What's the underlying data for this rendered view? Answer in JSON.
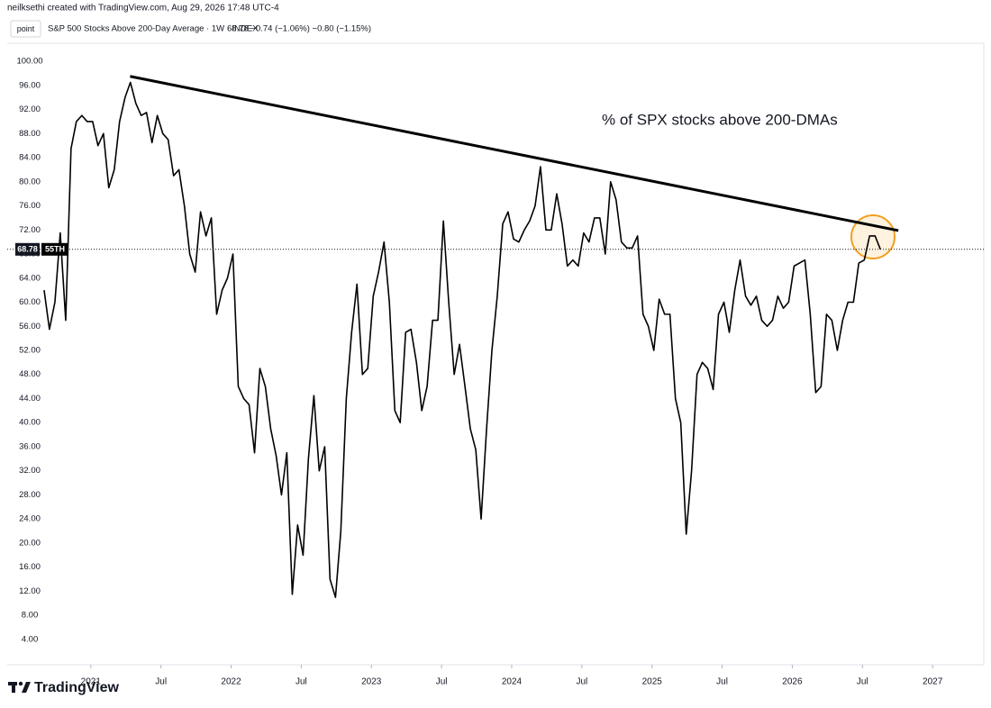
{
  "chart_data": {
    "type": "line",
    "credit": "neilksethi created with TradingView.com, Aug 29, 2026 17:48 UTC-4",
    "button": "point",
    "legend_title": "S&P 500 Stocks Above 200-Day Average · 1W · INDEX",
    "legend_values": "68.78 −0.74 (−1.06%) −0.80 (−1.15%)",
    "annotation": "% of SPX stocks above 200-DMAs",
    "last_value_label": "68.78",
    "symbol_label": "55TH",
    "footer_brand": "TradingView",
    "x": [
      2020.667,
      2020.705,
      2020.744,
      2020.782,
      2020.821,
      2020.859,
      2020.897,
      2020.936,
      2020.974,
      2021.013,
      2021.051,
      2021.09,
      2021.128,
      2021.167,
      2021.205,
      2021.244,
      2021.282,
      2021.321,
      2021.359,
      2021.397,
      2021.436,
      2021.474,
      2021.513,
      2021.551,
      2021.59,
      2021.628,
      2021.667,
      2021.705,
      2021.744,
      2021.782,
      2021.821,
      2021.859,
      2021.897,
      2021.936,
      2021.974,
      2022.013,
      2022.051,
      2022.09,
      2022.128,
      2022.167,
      2022.205,
      2022.244,
      2022.282,
      2022.321,
      2022.359,
      2022.397,
      2022.436,
      2022.474,
      2022.513,
      2022.551,
      2022.59,
      2022.628,
      2022.667,
      2022.705,
      2022.744,
      2022.782,
      2022.821,
      2022.859,
      2022.897,
      2022.936,
      2022.974,
      2023.013,
      2023.051,
      2023.09,
      2023.128,
      2023.167,
      2023.205,
      2023.244,
      2023.282,
      2023.321,
      2023.359,
      2023.397,
      2023.436,
      2023.474,
      2023.513,
      2023.551,
      2023.59,
      2023.628,
      2023.667,
      2023.705,
      2023.744,
      2023.782,
      2023.821,
      2023.859,
      2023.897,
      2023.936,
      2023.974,
      2024.013,
      2024.051,
      2024.09,
      2024.128,
      2024.167,
      2024.205,
      2024.244,
      2024.282,
      2024.321,
      2024.359,
      2024.397,
      2024.436,
      2024.474,
      2024.513,
      2024.551,
      2024.59,
      2024.628,
      2024.667,
      2024.705,
      2024.744,
      2024.782,
      2024.821,
      2024.859,
      2024.897,
      2024.936,
      2024.974,
      2025.013,
      2025.051,
      2025.09,
      2025.128,
      2025.167,
      2025.205,
      2025.244,
      2025.282,
      2025.321,
      2025.359,
      2025.397,
      2025.436,
      2025.474,
      2025.513,
      2025.551,
      2025.59,
      2025.628,
      2025.667,
      2025.705,
      2025.744,
      2025.782,
      2025.821,
      2025.859,
      2025.897,
      2025.936,
      2025.974,
      2026.013,
      2026.051,
      2026.09,
      2026.128,
      2026.167,
      2026.205,
      2026.244,
      2026.282,
      2026.321,
      2026.359,
      2026.397,
      2026.436,
      2026.474,
      2026.513,
      2026.551,
      2026.59,
      2026.628
    ],
    "series": [
      {
        "name": "S&P 500 Stocks Above 200-Day Average",
        "color": "#000000",
        "values": [
          62,
          55.5,
          60,
          71.5,
          57,
          85.5,
          90,
          91,
          90,
          90,
          86,
          88,
          79,
          82,
          90,
          94,
          96.5,
          93,
          91,
          91.5,
          86.5,
          91,
          88,
          87,
          81,
          82,
          76,
          68,
          65,
          75,
          71,
          74,
          58,
          62,
          64,
          68,
          46,
          44,
          43,
          35,
          49,
          46,
          39,
          34.5,
          28,
          35,
          11.5,
          23,
          18,
          34,
          44.5,
          32,
          36,
          14,
          11,
          22,
          44,
          55,
          63,
          48,
          49,
          61,
          65,
          70,
          60,
          42,
          40,
          55,
          55.5,
          50,
          42,
          46,
          57,
          57,
          73.5,
          60,
          48,
          53,
          46,
          39,
          35.5,
          24,
          39,
          52,
          61,
          73,
          75,
          70.5,
          70,
          72,
          73.5,
          76,
          82.5,
          72,
          72,
          78,
          73,
          66,
          67,
          66,
          71.5,
          70,
          74,
          74,
          68,
          80,
          77,
          70,
          69,
          69,
          71,
          58,
          56,
          52,
          60.5,
          58,
          58,
          44,
          40,
          21.5,
          32,
          48,
          50,
          49,
          45.5,
          58,
          60,
          55,
          62,
          67,
          61,
          59.5,
          61,
          57,
          56,
          57,
          61,
          59,
          60,
          66,
          66.5,
          67,
          58,
          45,
          46,
          58,
          57,
          52,
          57,
          60,
          60,
          66.5,
          67,
          71,
          71,
          68.78
        ]
      }
    ],
    "trend_line": {
      "x": [
        2021.28,
        2026.756
      ],
      "values": [
        97.5,
        71.9
      ],
      "color": "#000000"
    },
    "xlim": [
      2020.404,
      2027.365
    ],
    "xticks": [
      {
        "value": 2021,
        "label": "2021"
      },
      {
        "value": 2021.5,
        "label": "Jul"
      },
      {
        "value": 2022,
        "label": "2022"
      },
      {
        "value": 2022.5,
        "label": "Jul"
      },
      {
        "value": 2023,
        "label": "2023"
      },
      {
        "value": 2023.5,
        "label": "Jul"
      },
      {
        "value": 2024,
        "label": "2024"
      },
      {
        "value": 2024.5,
        "label": "Jul"
      },
      {
        "value": 2025,
        "label": "2025"
      },
      {
        "value": 2025.5,
        "label": "Jul"
      },
      {
        "value": 2026,
        "label": "2026"
      },
      {
        "value": 2026.5,
        "label": "Jul"
      },
      {
        "value": 2027,
        "label": "2027"
      }
    ],
    "ylim": [
      -0.2,
      103
    ],
    "yticks": [
      {
        "value": 4,
        "label": "4.00"
      },
      {
        "value": 8,
        "label": "8.00"
      },
      {
        "value": 12,
        "label": "12.00"
      },
      {
        "value": 16,
        "label": "16.00"
      },
      {
        "value": 20,
        "label": "20.00"
      },
      {
        "value": 24,
        "label": "24.00"
      },
      {
        "value": 28,
        "label": "28.00"
      },
      {
        "value": 32,
        "label": "32.00"
      },
      {
        "value": 36,
        "label": "36.00"
      },
      {
        "value": 40,
        "label": "40.00"
      },
      {
        "value": 44,
        "label": "44.00"
      },
      {
        "value": 48,
        "label": "48.00"
      },
      {
        "value": 52,
        "label": "52.00"
      },
      {
        "value": 56,
        "label": "56.00"
      },
      {
        "value": 60,
        "label": "60.00"
      },
      {
        "value": 64,
        "label": "64.00"
      },
      {
        "value": 68,
        "label": "68.00"
      },
      {
        "value": 72,
        "label": "72.00"
      },
      {
        "value": 76,
        "label": "76.00"
      },
      {
        "value": 80,
        "label": "80.00"
      },
      {
        "value": 84,
        "label": "84.00"
      },
      {
        "value": 88,
        "label": "88.00"
      },
      {
        "value": 92,
        "label": "92.00"
      },
      {
        "value": 96,
        "label": "96.00"
      },
      {
        "value": 100,
        "label": "100.00"
      }
    ],
    "grid": false
  }
}
